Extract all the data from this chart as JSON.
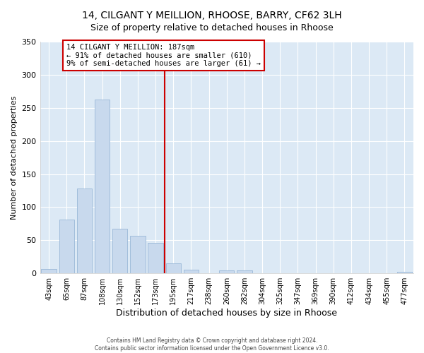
{
  "title": "14, CILGANT Y MEILLION, RHOOSE, BARRY, CF62 3LH",
  "subtitle": "Size of property relative to detached houses in Rhoose",
  "xlabel": "Distribution of detached houses by size in Rhoose",
  "ylabel": "Number of detached properties",
  "bar_labels": [
    "43sqm",
    "65sqm",
    "87sqm",
    "108sqm",
    "130sqm",
    "152sqm",
    "173sqm",
    "195sqm",
    "217sqm",
    "238sqm",
    "260sqm",
    "282sqm",
    "304sqm",
    "325sqm",
    "347sqm",
    "369sqm",
    "390sqm",
    "412sqm",
    "434sqm",
    "455sqm",
    "477sqm"
  ],
  "bar_values": [
    7,
    81,
    128,
    263,
    67,
    57,
    46,
    15,
    6,
    0,
    4,
    4,
    0,
    0,
    0,
    0,
    0,
    0,
    0,
    0,
    2
  ],
  "bar_color": "#c8d9ed",
  "bar_edge_color": "#9ab8d8",
  "vline_pos": 6.5,
  "vline_color": "#cc0000",
  "annotation_title": "14 CILGANT Y MEILLION: 187sqm",
  "annotation_line1": "← 91% of detached houses are smaller (610)",
  "annotation_line2": "9% of semi-detached houses are larger (61) →",
  "annotation_box_color": "#cc0000",
  "ylim": [
    0,
    350
  ],
  "yticks": [
    0,
    50,
    100,
    150,
    200,
    250,
    300,
    350
  ],
  "footer1": "Contains HM Land Registry data © Crown copyright and database right 2024.",
  "footer2": "Contains public sector information licensed under the Open Government Licence v3.0.",
  "bg_color": "#ffffff",
  "plot_bg_color": "#dce9f5"
}
